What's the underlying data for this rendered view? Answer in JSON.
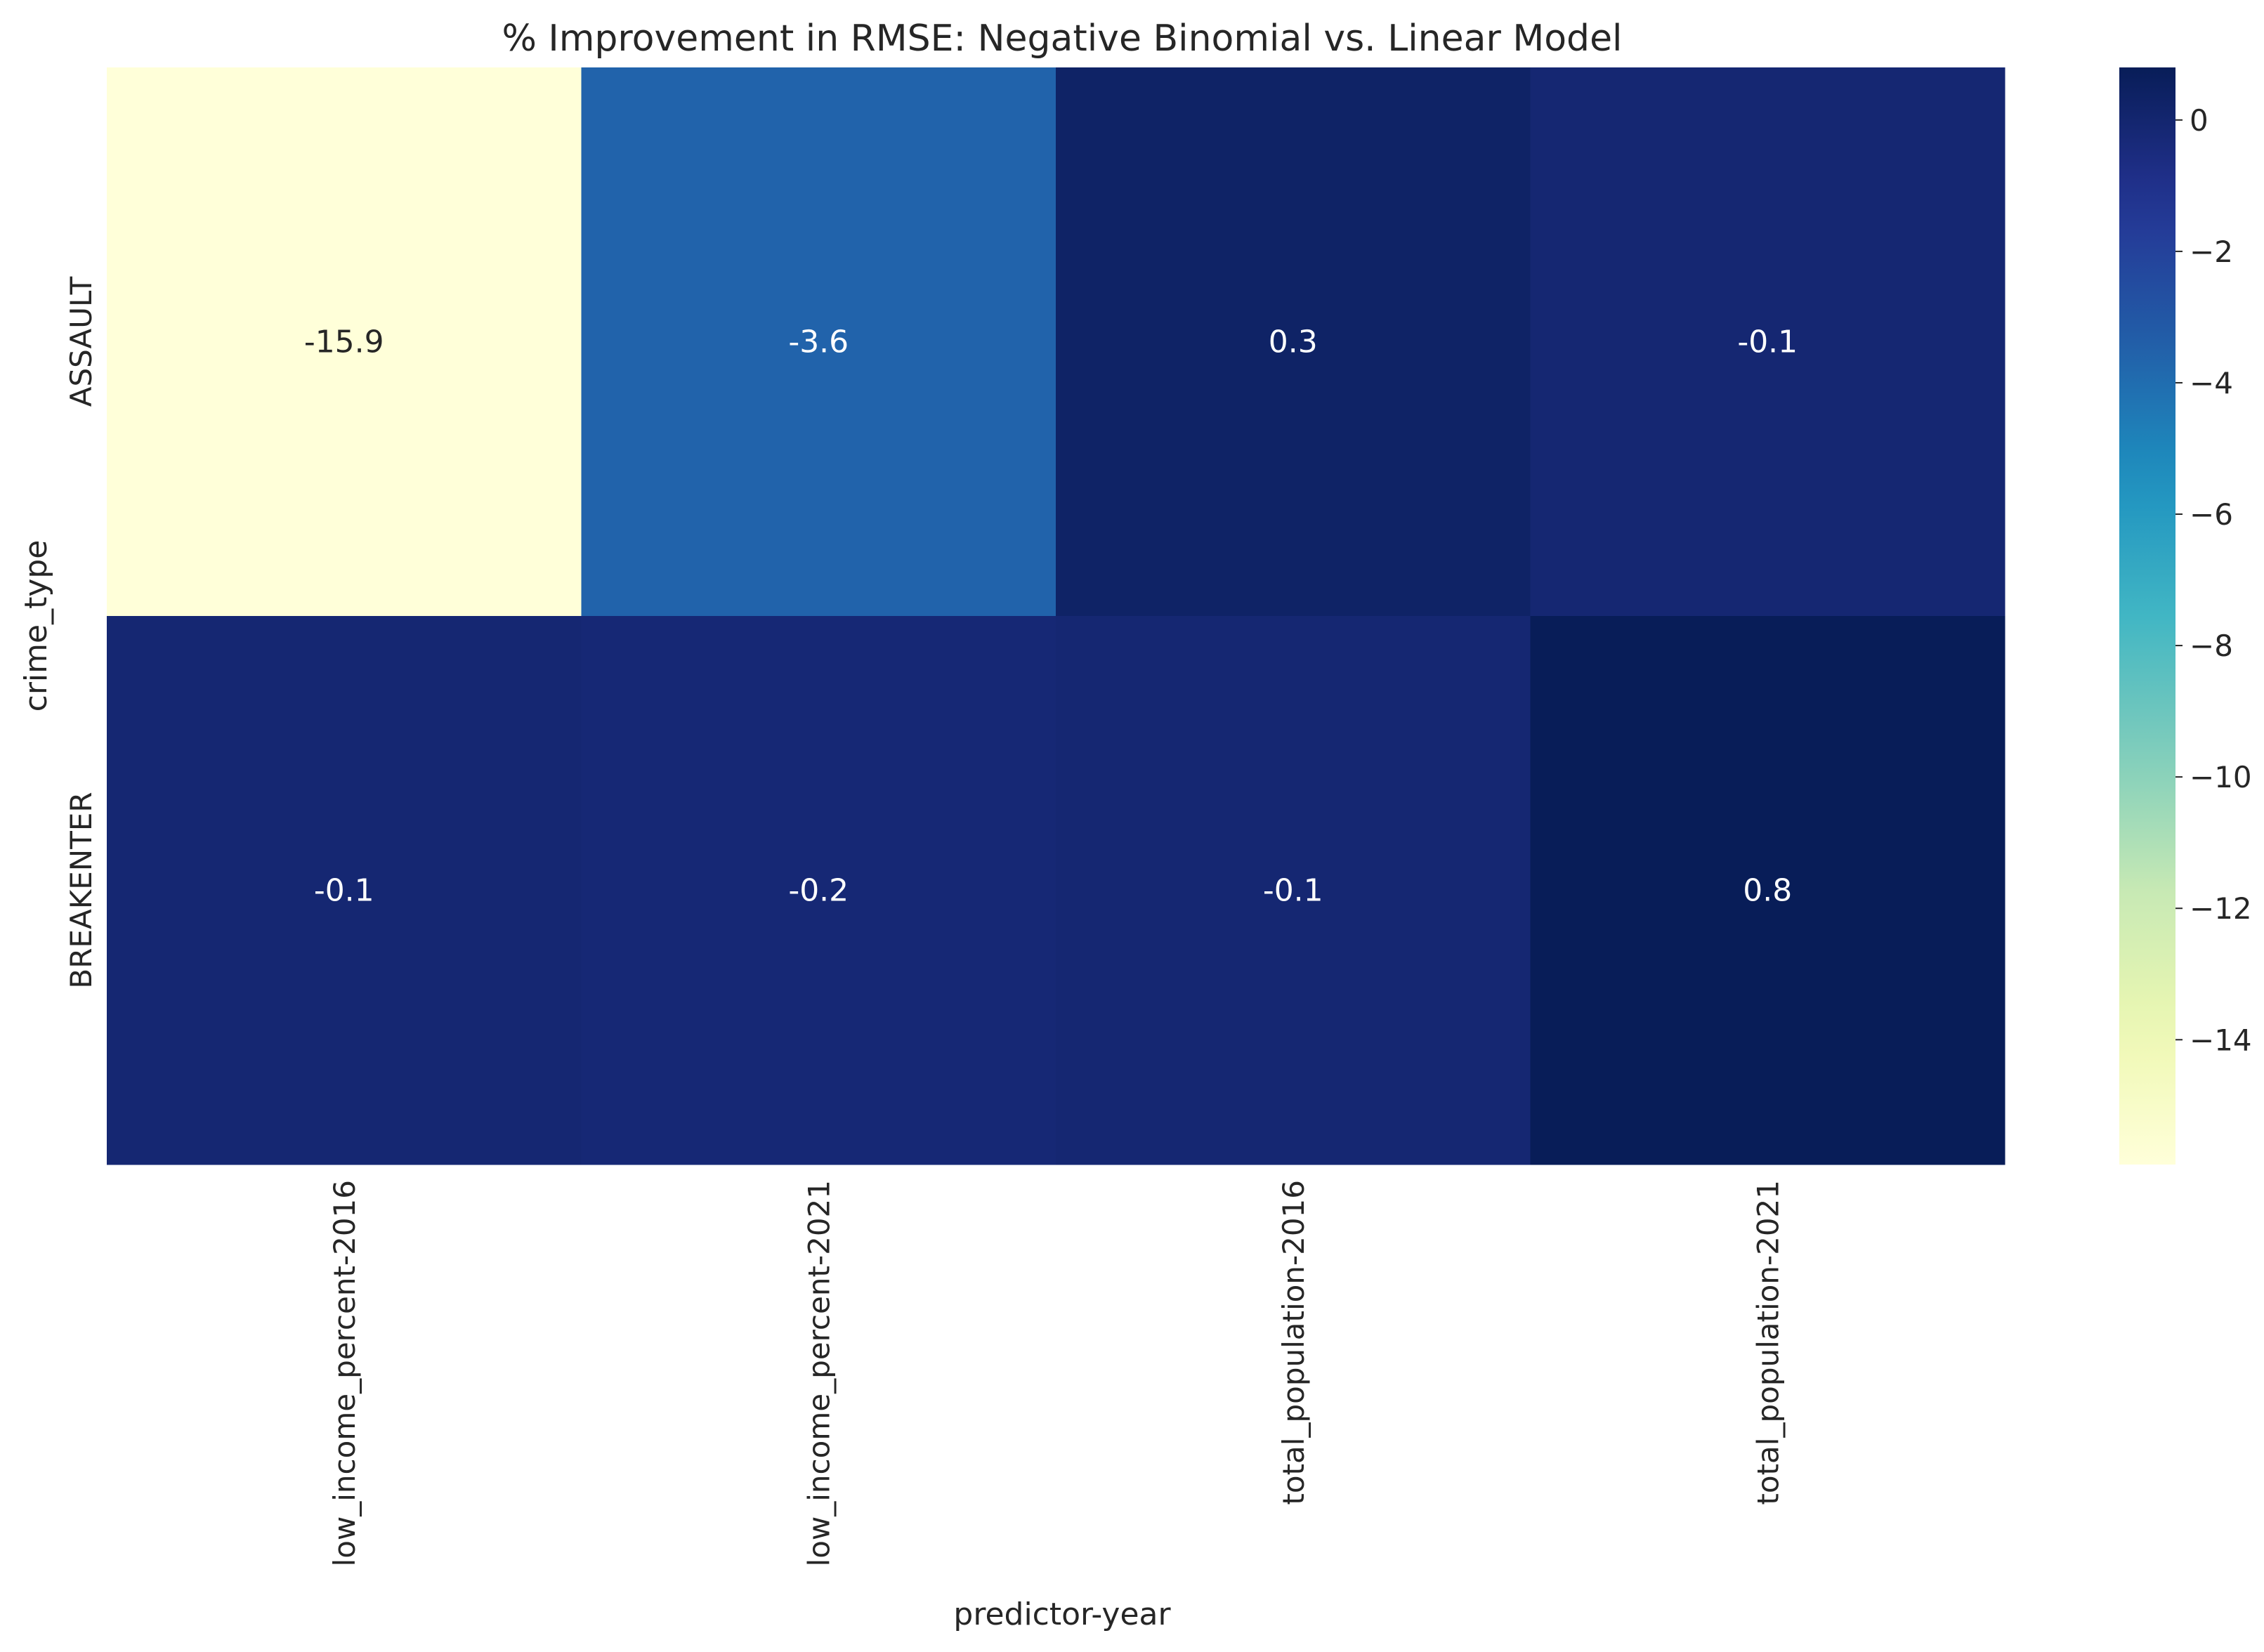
{
  "chart_data": {
    "type": "heatmap",
    "title": "% Improvement in RMSE: Negative Binomial vs. Linear Model",
    "xlabel": "predictor-year",
    "ylabel": "crime_type",
    "x_categories": [
      "low_income_percent-2016",
      "low_income_percent-2021",
      "total_population-2016",
      "total_population-2021"
    ],
    "y_categories": [
      "ASSAULT",
      "BREAKENTER"
    ],
    "values": [
      [
        -15.9,
        -3.6,
        0.3,
        -0.1
      ],
      [
        -0.1,
        -0.2,
        -0.1,
        0.8
      ]
    ],
    "colorbar": {
      "colormap": "YlGnBu",
      "range": [
        -15.9,
        0.8
      ],
      "ticks": [
        0,
        -2,
        -4,
        -6,
        -8,
        -10,
        -12,
        -14
      ],
      "tick_labels": [
        "0",
        "−2",
        "−4",
        "−6",
        "−8",
        "−10",
        "−12",
        "−14"
      ]
    },
    "grid": false,
    "legend": "colorbar-right"
  }
}
